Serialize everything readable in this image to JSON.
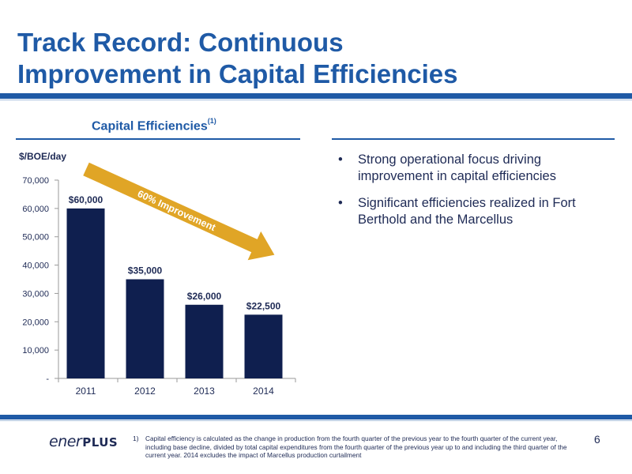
{
  "slide": {
    "title": "Track Record: Continuous\nImprovement in Capital Efficiencies",
    "chart_heading": "Capital Efficiencies",
    "chart_heading_sup": "(1)",
    "bullets": [
      "Strong operational focus driving improvement in capital efficiencies",
      "Significant efficiencies realized in Fort Berthold and the Marcellus"
    ],
    "logo_part1": "ener",
    "logo_part2": "PLUS",
    "footnote_number": "1)",
    "footnote_text": "Capital efficiency is calculated as the change in production from the fourth quarter of the previous year to the fourth quarter of the current year, including base decline, divided by total capital expenditures from the fourth quarter of the previous year up to and including the third quarter of the current year. 2014 excludes the impact of Marcellus production curtailment",
    "page_number": "6",
    "colors": {
      "brand_blue": "#1f5aa6",
      "bar_navy": "#0f1f4f",
      "arrow_gold": "#e0a526",
      "text_navy": "#1e2a55"
    }
  },
  "chart_data": {
    "type": "bar",
    "ylabel": "$/BOE/day",
    "categories": [
      "2011",
      "2012",
      "2013",
      "2014"
    ],
    "values": [
      60000,
      35000,
      26000,
      22500
    ],
    "data_labels": [
      "$60,000",
      "$35,000",
      "$26,000",
      "$22,500"
    ],
    "ylim": [
      0,
      70000
    ],
    "yticks": [
      0,
      10000,
      20000,
      30000,
      40000,
      50000,
      60000,
      70000
    ],
    "ytick_labels": [
      "-",
      "10,000",
      "20,000",
      "30,000",
      "40,000",
      "50,000",
      "60,000",
      "70,000"
    ],
    "grid": false,
    "annotation": "60% Improvement",
    "bar_color": "#0f1f4f",
    "arrow_color": "#e0a526"
  }
}
